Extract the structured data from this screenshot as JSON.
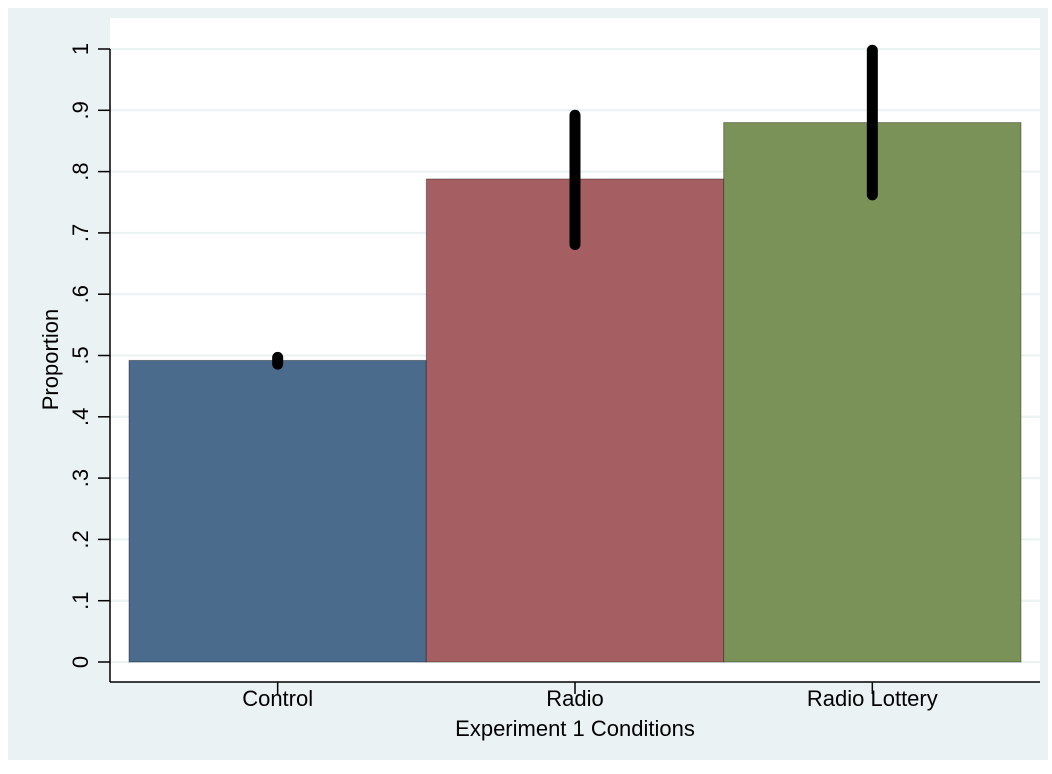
{
  "chart_data": {
    "type": "bar",
    "categories": [
      "Control",
      "Radio",
      "Radio Lottery"
    ],
    "values": [
      0.492,
      0.788,
      0.88
    ],
    "error_bars": [
      {
        "low": 0.486,
        "high": 0.497
      },
      {
        "low": 0.681,
        "high": 0.892
      },
      {
        "low": 0.762,
        "high": 0.998
      }
    ],
    "xlabel": "Experiment 1 Conditions",
    "ylabel": "Proportion",
    "ylim": [
      0,
      1
    ],
    "yticks": [
      {
        "value": 0,
        "label": "0"
      },
      {
        "value": 0.1,
        "label": ".1"
      },
      {
        "value": 0.2,
        "label": ".2"
      },
      {
        "value": 0.3,
        "label": ".3"
      },
      {
        "value": 0.4,
        "label": ".4"
      },
      {
        "value": 0.5,
        "label": ".5"
      },
      {
        "value": 0.6,
        "label": ".6"
      },
      {
        "value": 0.7,
        "label": ".7"
      },
      {
        "value": 0.8,
        "label": ".8"
      },
      {
        "value": 0.9,
        "label": ".9"
      },
      {
        "value": 1,
        "label": "1"
      }
    ],
    "colors": [
      "#4a6b8c",
      "#a55e62",
      "#7a9157"
    ],
    "outer_background": "#eaf2f3",
    "plot_background": "#ffffff",
    "gridline_color": "#eaf2f3",
    "grid": true,
    "legend": "none"
  }
}
